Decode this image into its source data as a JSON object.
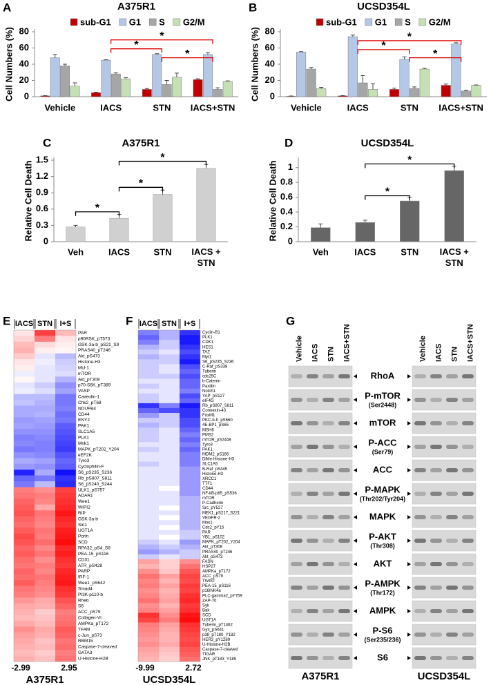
{
  "chart_data": [
    {
      "type": "bar",
      "panel": "A",
      "title": "A375R1",
      "ylabel": "Cell Numbers (%)",
      "categories": [
        "Vehicle",
        "IACS",
        "STN",
        "IACS+STN"
      ],
      "series": [
        {
          "name": "sub-G1",
          "color": "#c00000",
          "values": [
            1,
            5,
            9,
            21
          ],
          "errors": [
            0.3,
            0.5,
            1,
            1
          ]
        },
        {
          "name": "G1",
          "color": "#b4c7e7",
          "values": [
            48,
            45,
            52,
            52
          ],
          "errors": [
            4,
            0.5,
            1,
            2
          ]
        },
        {
          "name": "S",
          "color": "#a6a6a6",
          "values": [
            38,
            28,
            15,
            9
          ],
          "errors": [
            2,
            1.5,
            5,
            2
          ]
        },
        {
          "name": "G2/M",
          "color": "#c5e0b4",
          "values": [
            13,
            22,
            24,
            19
          ],
          "errors": [
            4,
            1.5,
            5,
            0.5
          ]
        }
      ],
      "ylim": [
        0,
        80
      ],
      "yticks": [
        0,
        20,
        40,
        60,
        80
      ],
      "legend": "top",
      "annotations": [
        {
          "from": "IACS",
          "to": "IACS+STN",
          "y": 70,
          "text": "*",
          "color": "#e00000"
        },
        {
          "from": "IACS",
          "to": "STN",
          "y": 59,
          "text": "*",
          "color": "#e00000"
        },
        {
          "from": "STN",
          "to": "IACS+STN",
          "y": 48,
          "text": "*",
          "color": "#e00000"
        }
      ]
    },
    {
      "type": "bar",
      "panel": "B",
      "title": "UCSD354L",
      "ylabel": "Cell Numbers (%)",
      "categories": [
        "Vehicle",
        "IACS",
        "STN",
        "IACS+STN"
      ],
      "series": [
        {
          "name": "sub-G1",
          "color": "#c00000",
          "values": [
            0.5,
            1,
            9,
            14
          ],
          "errors": [
            0.3,
            0.3,
            1.5,
            1.5
          ]
        },
        {
          "name": "G1",
          "color": "#b4c7e7",
          "values": [
            55,
            74,
            46,
            65
          ],
          "errors": [
            0.5,
            2,
            3,
            1.5
          ]
        },
        {
          "name": "S",
          "color": "#a6a6a6",
          "values": [
            34,
            17,
            10,
            7
          ],
          "errors": [
            2,
            9,
            2,
            1
          ]
        },
        {
          "name": "G2/M",
          "color": "#c5e0b4",
          "values": [
            10,
            9,
            34,
            14
          ],
          "errors": [
            1.5,
            7,
            1,
            0.5
          ]
        }
      ],
      "ylim": [
        0,
        80
      ],
      "yticks": [
        0,
        20,
        40,
        60,
        80
      ],
      "legend": "top",
      "annotations": [
        {
          "from": "IACS",
          "to": "IACS+STN",
          "y": 69,
          "text": "*",
          "color": "#e00000"
        },
        {
          "from": "IACS",
          "to": "STN",
          "y": 58,
          "text": "*",
          "color": "#e00000"
        },
        {
          "from": "STN",
          "to": "IACS+STN",
          "y": 48,
          "text": "*",
          "color": "#e00000"
        }
      ]
    },
    {
      "type": "bar",
      "panel": "C",
      "title": "A375R1",
      "ylabel": "Relative Cell Death",
      "categories": [
        "Veh",
        "IACS",
        "STN",
        "IACS + STN"
      ],
      "values": [
        0.27,
        0.43,
        0.87,
        1.35
      ],
      "errors": [
        0.03,
        0.07,
        0.08,
        0.07
      ],
      "color": "#d0d0d0",
      "ylim": [
        0,
        1.5
      ],
      "yticks": [
        0,
        0.3,
        0.6,
        0.9,
        1.2,
        1.5
      ],
      "annotations": [
        {
          "from": "Veh",
          "to": "IACS",
          "y": 0.55,
          "text": "*",
          "color": "#000000"
        },
        {
          "from": "IACS",
          "to": "STN",
          "y": 1.0,
          "text": "*",
          "color": "#000000"
        },
        {
          "from": "IACS",
          "to": "IACS + STN",
          "y": 1.48,
          "text": "*",
          "color": "#000000"
        }
      ]
    },
    {
      "type": "bar",
      "panel": "D",
      "title": "UCSD354L",
      "ylabel": "Relative Cell Death",
      "categories": [
        "Veh",
        "IACS",
        "STN",
        "IACS + STN"
      ],
      "values": [
        0.19,
        0.26,
        0.55,
        0.96
      ],
      "errors": [
        0.05,
        0.03,
        0.05,
        0.06
      ],
      "color": "#666666",
      "ylim": [
        0,
        1.1
      ],
      "yticks": [
        0,
        0.2,
        0.4,
        0.6,
        0.8,
        1
      ],
      "annotations": [
        {
          "from": "IACS",
          "to": "STN",
          "y": 0.62,
          "text": "*",
          "color": "#000000"
        },
        {
          "from": "IACS",
          "to": "IACS + STN",
          "y": 1.05,
          "text": "*",
          "color": "#000000"
        }
      ]
    },
    {
      "type": "heatmap",
      "panel": "E",
      "title": "A375R1",
      "columns": [
        "IACS",
        "STN",
        "I+S"
      ],
      "zlim": [
        -2.99,
        2.95
      ],
      "rows": [
        "PAR",
        "p90RSK_pT573",
        "GSK-3a-b_pS21_S9",
        "PRAS40_pT246",
        "Akt_pS473",
        "Histone-H3",
        "Mcl-1",
        "mTOR",
        "Akt_pT308",
        "p70-S6K_pT389",
        "VASP",
        "Caveolin-1",
        "Chk2_pT68",
        "NDUFB4",
        "CD44",
        "ENY2",
        "PAK1",
        "SLC1A5",
        "PLK1",
        "Mnk1",
        "MAPK_pT202_Y204",
        "eEF2K",
        "Tyro3",
        "Cyclophilin-F",
        "S6_pS235_S236",
        "Rb_pS807_S811",
        "S6_pS240_S244",
        "ULK1_pS757",
        "ADAR1",
        "Wee1",
        "WIPI2",
        "RIP",
        "GSK-3a-b",
        "Sin1",
        "UGT1A",
        "Porin",
        "SCD",
        "RPA32_pS4_S8",
        "PEA-15_pS116",
        "CD31",
        "ATR_pS428",
        "PARP",
        "IRF-1",
        "Wee1_pS642",
        "Smad4",
        "PI3K-p110-b",
        "Rheb",
        "S6",
        "ACC_pS79",
        "Collagen-VI",
        "AMPKa_pT172",
        "TFAM",
        "c-Jun_pS73",
        "RBM15",
        "Caspase-7-cleaved",
        "GATA3",
        "U-Histone-H2B"
      ],
      "values": [
        [
          0.3,
          2.2,
          0.8
        ],
        [
          0.5,
          1.5,
          0.3
        ],
        [
          0.8,
          0.4,
          0.2
        ],
        [
          0.9,
          0.2,
          0.1
        ],
        [
          0.6,
          -0.3,
          -0.8
        ],
        [
          0.3,
          -0.2,
          -0.6
        ],
        [
          0.2,
          -0.3,
          -0.5
        ],
        [
          -0.2,
          -0.3,
          -0.4
        ],
        [
          0.1,
          -0.3,
          -0.9
        ],
        [
          -0.3,
          -0.6,
          -1.3
        ],
        [
          -0.2,
          -0.4,
          -1.1
        ],
        [
          -0.8,
          -0.8,
          -1.6
        ],
        [
          -0.7,
          -0.9,
          -1.6
        ],
        [
          -1.0,
          -1.0,
          -1.5
        ],
        [
          -1.0,
          -0.9,
          -1.7
        ],
        [
          -1.2,
          -1.1,
          -1.6
        ],
        [
          -1.1,
          -1.2,
          -1.9
        ],
        [
          -1.3,
          -1.3,
          -2.0
        ],
        [
          -1.5,
          -1.4,
          -2.1
        ],
        [
          -1.4,
          -1.5,
          -2.2
        ],
        [
          -1.6,
          -1.5,
          -2.3
        ],
        [
          -1.3,
          -1.4,
          -2.0
        ],
        [
          -1.0,
          -1.1,
          -1.8
        ],
        [
          -1.2,
          -1.3,
          -1.9
        ],
        [
          -2.6,
          -1.0,
          -2.8
        ],
        [
          -1.8,
          -1.6,
          -2.4
        ],
        [
          -1.6,
          -0.8,
          -2.5
        ],
        [
          1.5,
          1.3,
          2.2
        ],
        [
          1.6,
          1.5,
          2.3
        ],
        [
          1.8,
          1.4,
          2.4
        ],
        [
          1.9,
          1.0,
          2.5
        ],
        [
          2.0,
          1.6,
          2.7
        ],
        [
          1.8,
          1.5,
          2.5
        ],
        [
          1.7,
          1.4,
          2.4
        ],
        [
          1.9,
          1.6,
          2.6
        ],
        [
          2.1,
          1.5,
          2.7
        ],
        [
          2.0,
          1.7,
          2.8
        ],
        [
          1.8,
          1.4,
          2.5
        ],
        [
          1.9,
          1.6,
          2.6
        ],
        [
          1.7,
          1.3,
          2.4
        ],
        [
          1.6,
          1.5,
          2.3
        ],
        [
          1.8,
          1.4,
          2.5
        ],
        [
          1.7,
          1.6,
          2.6
        ],
        [
          1.9,
          1.5,
          2.7
        ],
        [
          1.6,
          1.4,
          2.4
        ],
        [
          1.5,
          1.3,
          2.3
        ],
        [
          1.2,
          1.0,
          2.0
        ],
        [
          1.0,
          0.9,
          1.8
        ],
        [
          0.9,
          0.6,
          1.5
        ],
        [
          0.8,
          0.7,
          1.6
        ],
        [
          1.0,
          0.8,
          1.7
        ],
        [
          1.3,
          1.0,
          1.9
        ],
        [
          1.1,
          0.9,
          1.8
        ],
        [
          1.0,
          0.7,
          1.6
        ],
        [
          0.9,
          0.8,
          1.7
        ],
        [
          0.8,
          0.6,
          1.5
        ],
        [
          0.9,
          0.7,
          1.6
        ]
      ]
    },
    {
      "type": "heatmap",
      "panel": "F",
      "title": "UCSD354L",
      "columns": [
        "IACS",
        "STN",
        "I+S"
      ],
      "zlim": [
        -9.99,
        2.72
      ],
      "rows": [
        "Cyclin-B1",
        "PLK1",
        "CDK1",
        "HES1",
        "TAZ",
        "Myt1",
        "S6_pS235_S236",
        "C-Raf_pS338",
        "Tuberin",
        "cdc25C",
        "b-Catenin",
        "Paxillin",
        "Notch1",
        "YAP_pS127",
        "eIF4G",
        "Rb_pS807_S811",
        "Connexin-43",
        "FoxM1",
        "PKC-b-II_pS660",
        "4E-BP1_pS65",
        "MSH6",
        "PMS2",
        "mTOR_pS2448",
        "Tyro3",
        "PAK1",
        "MDM2_pS166",
        "DiMe-Histone-H3",
        "SLC1A5",
        "B-Raf_pS445",
        "Histone-H3",
        "XRCC1",
        "TTF1",
        "CD44",
        "NF-kB-p65_pS536",
        "mTOR",
        "P-Cadherin",
        "Src_pY527",
        "MEK1_pS217_S221",
        "VEGFR-2",
        "Mnk1",
        "Cdc2_pY15",
        "PAR",
        "YB1_pS102",
        "MAPK_pT202_Y204",
        "Akt_pT308",
        "PRAS40_pT246",
        "Akt_pS473",
        "FASN",
        "HSP27",
        "AMPKa_pT172",
        "ACC_pS79",
        "TWIST",
        "PEA-15_pS116",
        "p16INK4a",
        "PLC-gamma2_pY759",
        "ZAP-70",
        "Syk",
        "Bak",
        "SCD",
        "UGT1A",
        "Tuberin_pT1462",
        "Gys_pS641",
        "p38_pT180_Y182",
        "HER3_pY1289",
        "U-Histone-H2B",
        "Caspase-7-cleaved",
        "TIGAR",
        "JNK_pT183_Y185"
      ],
      "values": [
        [
          -5,
          -3,
          -8
        ],
        [
          -6,
          -3,
          -9
        ],
        [
          -5,
          -2,
          -9
        ],
        [
          -3,
          -2,
          -8
        ],
        [
          -2,
          -1,
          -7
        ],
        [
          -3,
          -2,
          -8
        ],
        [
          -2,
          -2,
          -9
        ],
        [
          -2,
          -1,
          -7
        ],
        [
          -2,
          -1,
          -6
        ],
        [
          -2,
          -2,
          -7
        ],
        [
          -1,
          -1,
          -6
        ],
        [
          -2,
          -1,
          -6
        ],
        [
          -1,
          -1,
          -5
        ],
        [
          -2,
          -1,
          -7
        ],
        [
          -2,
          -1,
          -6
        ],
        [
          -8,
          -5,
          -9
        ],
        [
          -6,
          -7,
          -8
        ],
        [
          -4,
          -2,
          -8
        ],
        [
          -2,
          -2,
          -7
        ],
        [
          -3,
          -2,
          -7
        ],
        [
          -2,
          -1,
          -6
        ],
        [
          -2,
          -1,
          -5
        ],
        [
          -2,
          -1,
          -6
        ],
        [
          -1,
          -1,
          -5
        ],
        [
          -2,
          -1,
          -6
        ],
        [
          -1,
          -1,
          -5
        ],
        [
          -1,
          -1,
          -5
        ],
        [
          -2,
          -1,
          -5
        ],
        [
          -1,
          -1,
          -4
        ],
        [
          -1,
          -1,
          -4
        ],
        [
          -1,
          -1,
          -4
        ],
        [
          -1,
          -1,
          -4
        ],
        [
          -1,
          0,
          -4
        ],
        [
          -1,
          -1,
          -4
        ],
        [
          -1,
          -1,
          -3
        ],
        [
          -1,
          -1,
          -3
        ],
        [
          -1,
          0,
          -3
        ],
        [
          -1,
          -1,
          -3
        ],
        [
          -1,
          0,
          -3
        ],
        [
          -1,
          -1,
          -3
        ],
        [
          -1,
          0,
          -3
        ],
        [
          -1,
          -1,
          -2
        ],
        [
          -1,
          0,
          -2
        ],
        [
          -2,
          -1,
          -4
        ],
        [
          -3,
          -2,
          -3
        ],
        [
          -4,
          -3,
          -2
        ],
        [
          -2,
          -1,
          -2
        ],
        [
          1,
          0.5,
          1.2
        ],
        [
          0.8,
          0.5,
          1.5
        ],
        [
          1.2,
          0.6,
          1.8
        ],
        [
          1.5,
          1,
          2.0
        ],
        [
          1.3,
          0.8,
          1.9
        ],
        [
          1.4,
          1,
          2.1
        ],
        [
          1.2,
          0.8,
          2.0
        ],
        [
          1.3,
          0.9,
          2.2
        ],
        [
          1.5,
          1.0,
          2.3
        ],
        [
          1.2,
          0.8,
          2.1
        ],
        [
          1.3,
          1,
          2.2
        ],
        [
          2.2,
          1.2,
          2.5
        ],
        [
          2.0,
          1.4,
          2.6
        ],
        [
          1.4,
          1,
          2.2
        ],
        [
          1.3,
          0.9,
          2.1
        ],
        [
          1.2,
          0.8,
          2.0
        ],
        [
          1.1,
          0.8,
          1.9
        ],
        [
          1.2,
          0.9,
          2.0
        ],
        [
          1,
          0.7,
          1.8
        ],
        [
          0.9,
          0.6,
          1.7
        ],
        [
          0.8,
          0.5,
          1.5
        ]
      ]
    }
  ],
  "blot": {
    "panel": "G",
    "lanes": [
      "Vehicle",
      "IACS",
      "STN",
      "IACS+STN"
    ],
    "cell_lines": [
      "A375R1",
      "UCSD354L"
    ],
    "rows": [
      {
        "label": "RhoA"
      },
      {
        "label": "P-mTOR",
        "sublabel": "(Ser2448)"
      },
      {
        "label": "mTOR"
      },
      {
        "label": "P-ACC",
        "sublabel": "(Ser79)"
      },
      {
        "label": "ACC"
      },
      {
        "label": "P-MAPK",
        "sublabel": "(Thr202/Tyr204)"
      },
      {
        "label": "MAPK"
      },
      {
        "label": "P-AKT",
        "sublabel": "(Thr308)"
      },
      {
        "label": "AKT"
      },
      {
        "label": "P-AMPK",
        "sublabel": "(Thr172)"
      },
      {
        "label": "AMPK"
      },
      {
        "label": "P-S6",
        "sublabel": "(Ser235/236)"
      },
      {
        "label": "S6"
      }
    ]
  }
}
